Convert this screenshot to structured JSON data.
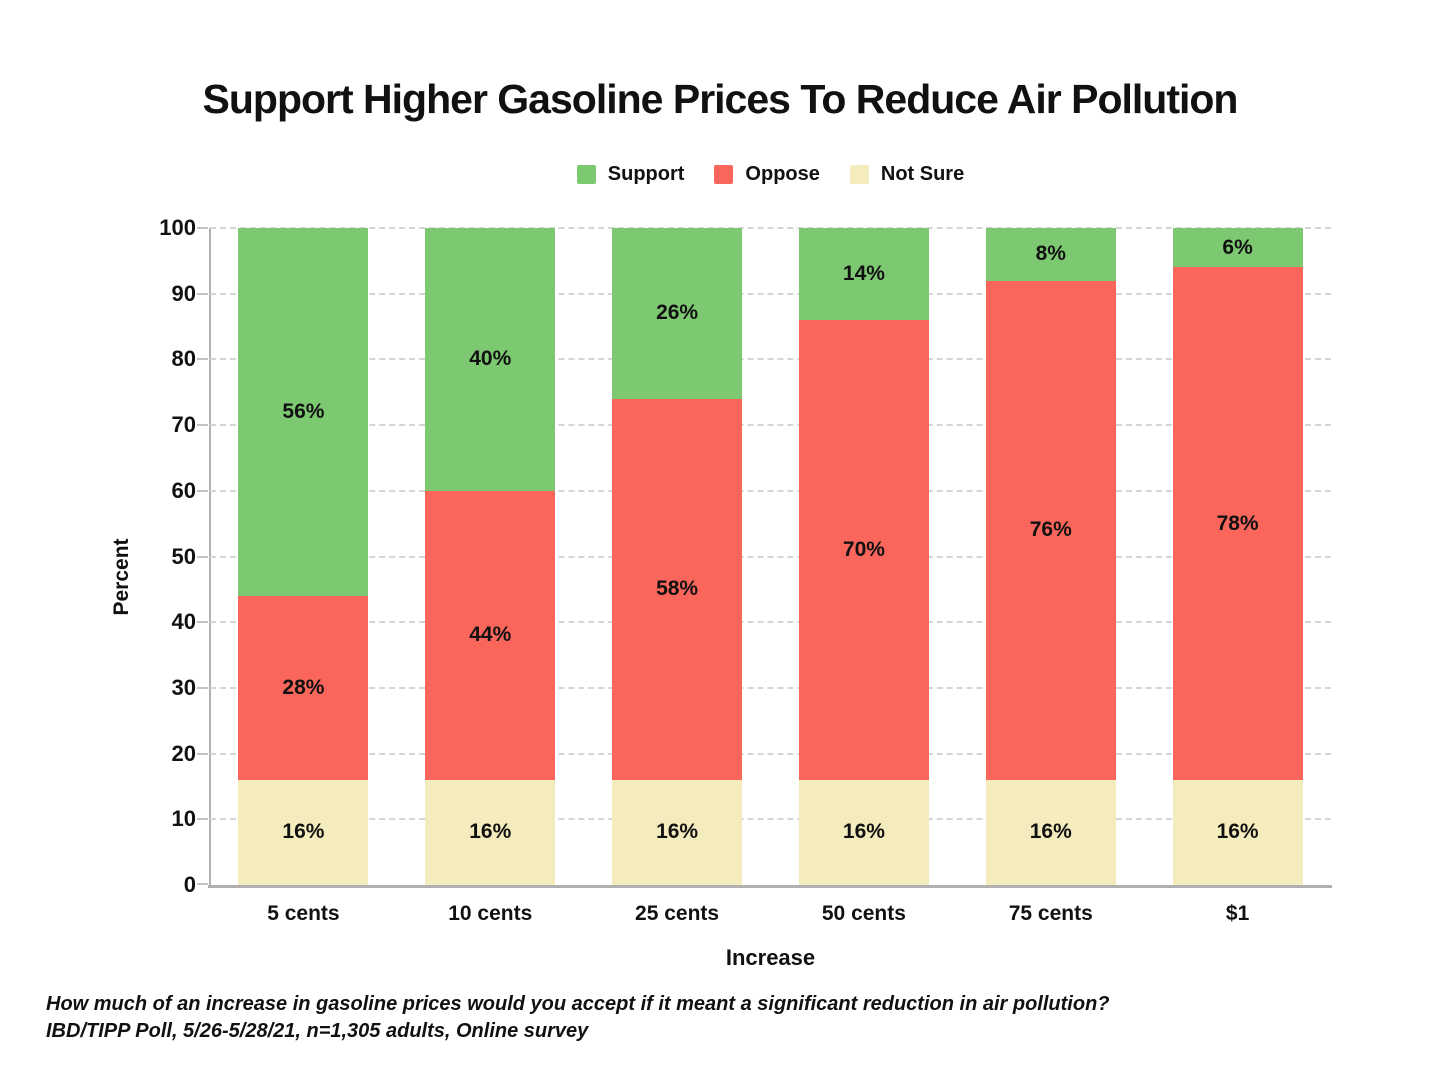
{
  "chart_data": {
    "type": "bar",
    "stacked": true,
    "title": "Support Higher Gasoline Prices To Reduce Air Pollution",
    "xlabel": "Increase",
    "ylabel": "Percent",
    "categories": [
      "5 cents",
      "10 cents",
      "25 cents",
      "50 cents",
      "75 cents",
      "$1"
    ],
    "series": [
      {
        "name": "Support",
        "color": "#7DC972",
        "values": [
          56,
          40,
          26,
          14,
          8,
          6
        ]
      },
      {
        "name": "Oppose",
        "color": "#FA665B",
        "values": [
          28,
          44,
          58,
          70,
          76,
          78
        ]
      },
      {
        "name": "Not Sure",
        "color": "#F5ECBE",
        "values": [
          16,
          16,
          16,
          16,
          16,
          16
        ]
      }
    ],
    "stack_order_bottom_to_top": [
      "Not Sure",
      "Oppose",
      "Support"
    ],
    "labels_format": "{value}%",
    "ylim": [
      0,
      100
    ],
    "yticks": [
      0,
      10,
      20,
      30,
      40,
      50,
      60,
      70,
      80,
      90,
      100
    ],
    "grid": "dashed horizontal",
    "legend_position": "top center"
  },
  "footer": {
    "line1": "How much of an increase in gasoline prices would you accept if it meant a significant reduction in air pollution?",
    "line2": "IBD/TIPP Poll, 5/26-5/28/21, n=1,305 adults, Online survey"
  },
  "colors": {
    "grid": "#d5d5d5",
    "axis": "#b0b0b0",
    "tick": "#c2c2c2",
    "text": "#111111",
    "background": "#ffffff"
  }
}
